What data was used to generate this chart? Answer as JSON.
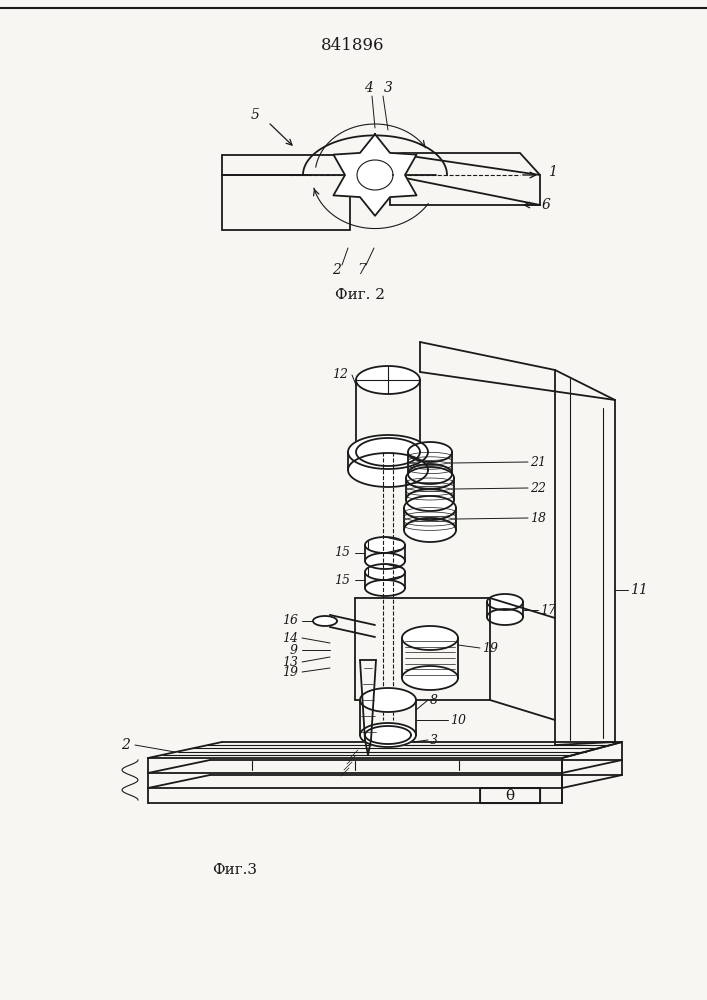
{
  "patent_number": "841896",
  "fig2_label": "Фиг. 2",
  "fig3_label": "Фиг.3",
  "bg_color": "#f8f6f2",
  "line_color": "#1a1a1a",
  "border_color": "#111111"
}
